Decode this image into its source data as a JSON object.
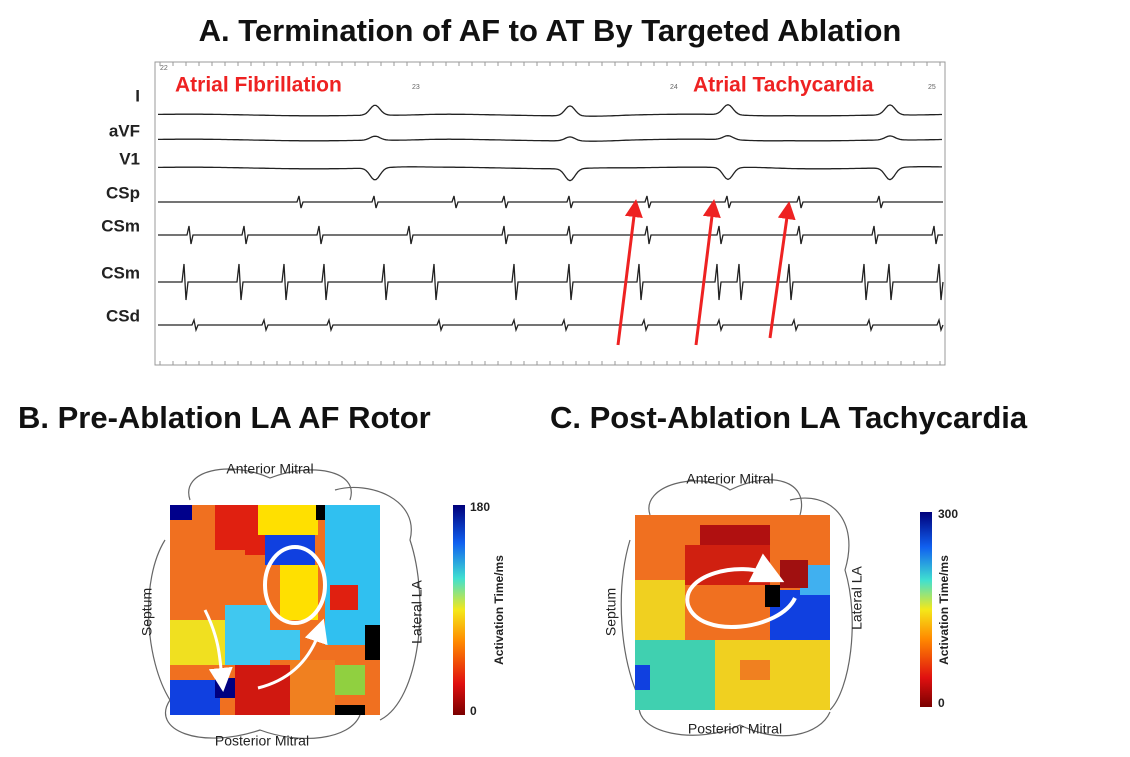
{
  "panel_a": {
    "title": "A. Termination of AF to AT By Targeted Ablation",
    "leads": [
      "I",
      "aVF",
      "V1",
      "CSp",
      "CSm",
      "CSm",
      "CSd"
    ],
    "annotations": [
      "Atrial Fibrillation",
      "Atrial Tachycardia"
    ],
    "time_marks": [
      "22",
      "23",
      "24",
      "25"
    ]
  },
  "panel_b": {
    "title": "B. Pre-Ablation LA AF Rotor",
    "labels": {
      "top": "Anterior Mitral",
      "bottom": "Posterior Mitral",
      "left": "Septum",
      "right": "Lateral LA"
    },
    "colorbar": {
      "label": "Activation Time/ms",
      "max": 180,
      "min": 0
    }
  },
  "panel_c": {
    "title": "C. Post-Ablation LA Tachycardia",
    "labels": {
      "top": "Anterior Mitral",
      "bottom": "Posterior Mitral",
      "left": "Septum",
      "right": "Lateral LA"
    },
    "colorbar": {
      "label": "Activation Time/ms",
      "max": 300,
      "min": 0
    }
  }
}
